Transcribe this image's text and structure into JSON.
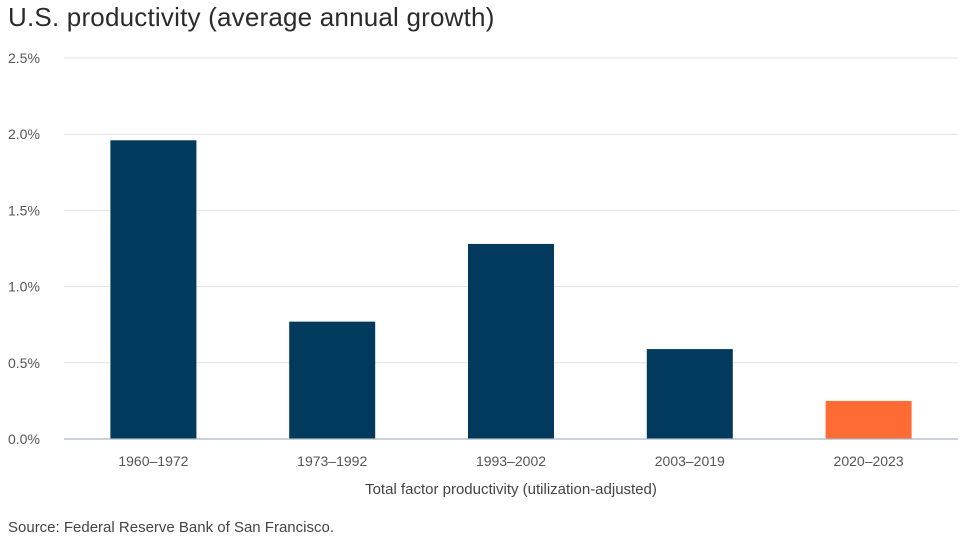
{
  "title": "U.S. productivity (average annual growth)",
  "source": "Source: Federal Reserve Bank of San Francisco.",
  "chart_data": {
    "type": "bar",
    "title": "U.S. productivity (average annual growth)",
    "xlabel": "Total factor productivity (utilization-adjusted)",
    "ylabel": "",
    "categories": [
      "1960–1972",
      "1973–1992",
      "1993–2002",
      "2003–2019",
      "2020–2023"
    ],
    "values": [
      1.96,
      0.77,
      1.28,
      0.59,
      0.25
    ],
    "ylim": [
      0,
      2.5
    ],
    "yticks": [
      0,
      0.5,
      1.0,
      1.5,
      2.0,
      2.5
    ],
    "ytick_labels": [
      "0.0%",
      "0.5%",
      "1.0%",
      "1.5%",
      "2.0%",
      "2.5%"
    ],
    "colors": [
      "#013a5c",
      "#013a5c",
      "#013a5c",
      "#013a5c",
      "#ff6b35"
    ],
    "grid": true,
    "legend": "none"
  }
}
